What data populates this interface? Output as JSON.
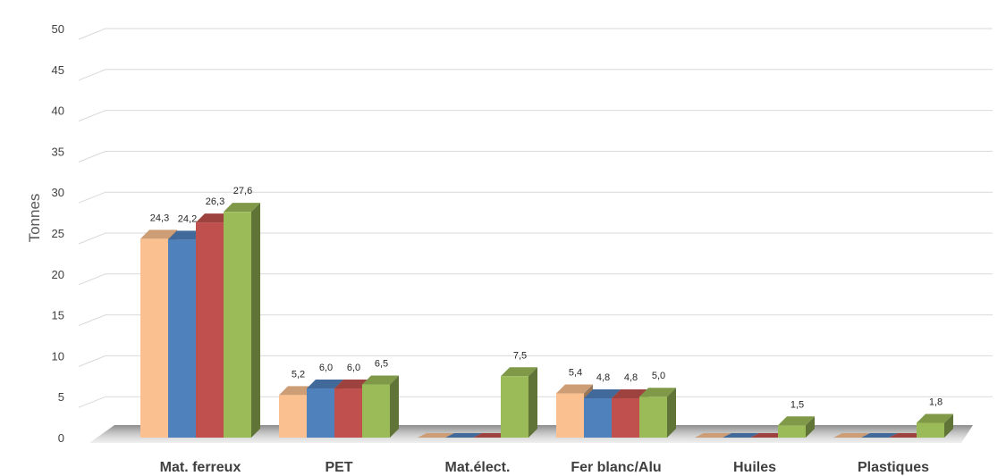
{
  "chart_data": {
    "type": "bar",
    "title": "",
    "xlabel": "",
    "ylabel": "Tonnes",
    "ylim": [
      0,
      50
    ],
    "yticks": [
      0,
      5,
      10,
      15,
      20,
      25,
      30,
      35,
      40,
      45,
      50
    ],
    "grid": true,
    "legend": "none",
    "categories": [
      "Mat. ferreux",
      "PET",
      "Mat.élect.",
      "Fer blanc/Alu",
      "Huiles",
      "Plastiques"
    ],
    "series": [
      {
        "color": "#fac090",
        "values": [
          24.3,
          5.2,
          0,
          5.4,
          0,
          0
        ],
        "labels": [
          "24,3",
          "5,2",
          "",
          "5,4",
          "",
          ""
        ]
      },
      {
        "color": "#4f81bd",
        "values": [
          24.2,
          6.0,
          0,
          4.8,
          0,
          0
        ],
        "labels": [
          "24,2",
          "6,0",
          "",
          "4,8",
          "",
          ""
        ]
      },
      {
        "color": "#c0504d",
        "values": [
          26.3,
          6.0,
          0,
          4.8,
          0,
          0
        ],
        "labels": [
          "26,3",
          "6,0",
          "",
          "4,8",
          "",
          ""
        ]
      },
      {
        "color": "#9bbb59",
        "values": [
          27.6,
          6.5,
          7.5,
          5.0,
          1.5,
          1.8
        ],
        "labels": [
          "27,6",
          "6,5",
          "7,5",
          "5,0",
          "1,5",
          "1,8"
        ]
      }
    ]
  }
}
